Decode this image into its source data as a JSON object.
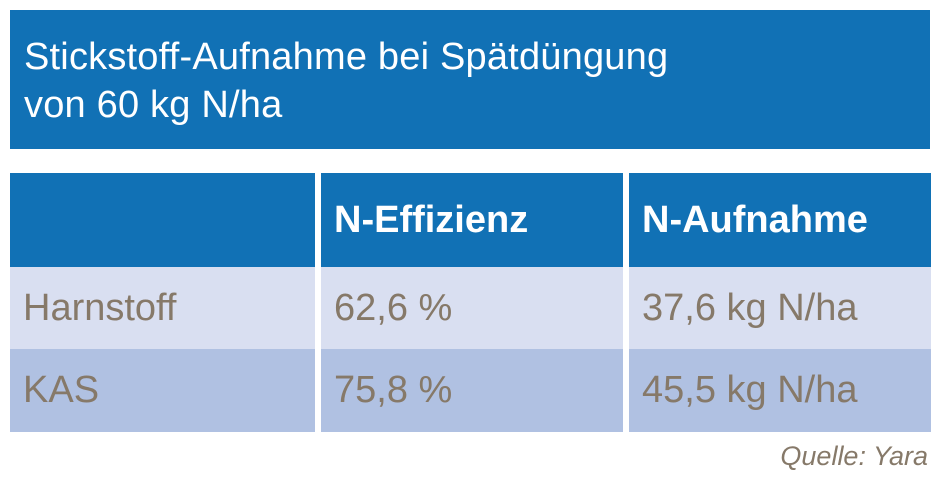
{
  "page": {
    "background": "#ffffff",
    "accent_blue": "#1171b5",
    "row_light": "#d9dff1",
    "row_medium": "#b0c1e2",
    "body_text_color": "#867969"
  },
  "header": {
    "title_line1": "Stickstoff-Aufnahme bei Spätdüngung",
    "title_line2": "von 60 kg N/ha",
    "text_color": "#ffffff"
  },
  "table": {
    "header_cells": [
      "",
      "N-Effizienz",
      "N-Aufnahme"
    ],
    "rows": [
      {
        "cells": [
          "Harnstoff",
          "62,6 %",
          "37,6 kg N/ha"
        ]
      },
      {
        "cells": [
          "KAS",
          "75,8 %",
          "45,5 kg N/ha"
        ]
      }
    ]
  },
  "footer": {
    "source": "Quelle: Yara"
  },
  "chart_data": {
    "type": "table",
    "title": "Stickstoff-Aufnahme bei Spätdüngung von 60 kg N/ha",
    "columns": [
      "",
      "N-Effizienz",
      "N-Aufnahme"
    ],
    "rows": [
      [
        "Harnstoff",
        "62,6 %",
        "37,6 kg N/ha"
      ],
      [
        "KAS",
        "75,8 %",
        "45,5 kg N/ha"
      ]
    ],
    "values": [
      {
        "duenger": "Harnstoff",
        "n_effizienz_prozent": 62.6,
        "n_aufnahme_kg_n_ha": 37.6
      },
      {
        "duenger": "KAS",
        "n_effizienz_prozent": 75.8,
        "n_aufnahme_kg_n_ha": 45.5
      }
    ],
    "spaetduengung_kg_n_ha": 60,
    "source": "Quelle: Yara",
    "layout": {
      "header_background": "#1171b5",
      "row_backgrounds": [
        "#d9dff1",
        "#b0c1e2"
      ]
    }
  }
}
